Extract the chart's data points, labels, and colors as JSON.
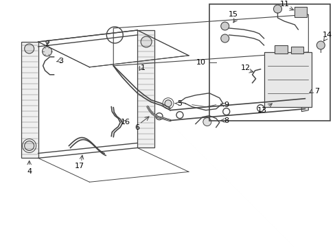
{
  "bg_color": "#ffffff",
  "line_color": "#444444",
  "text_color": "#000000",
  "fig_width": 4.89,
  "fig_height": 3.6,
  "dpi": 100
}
